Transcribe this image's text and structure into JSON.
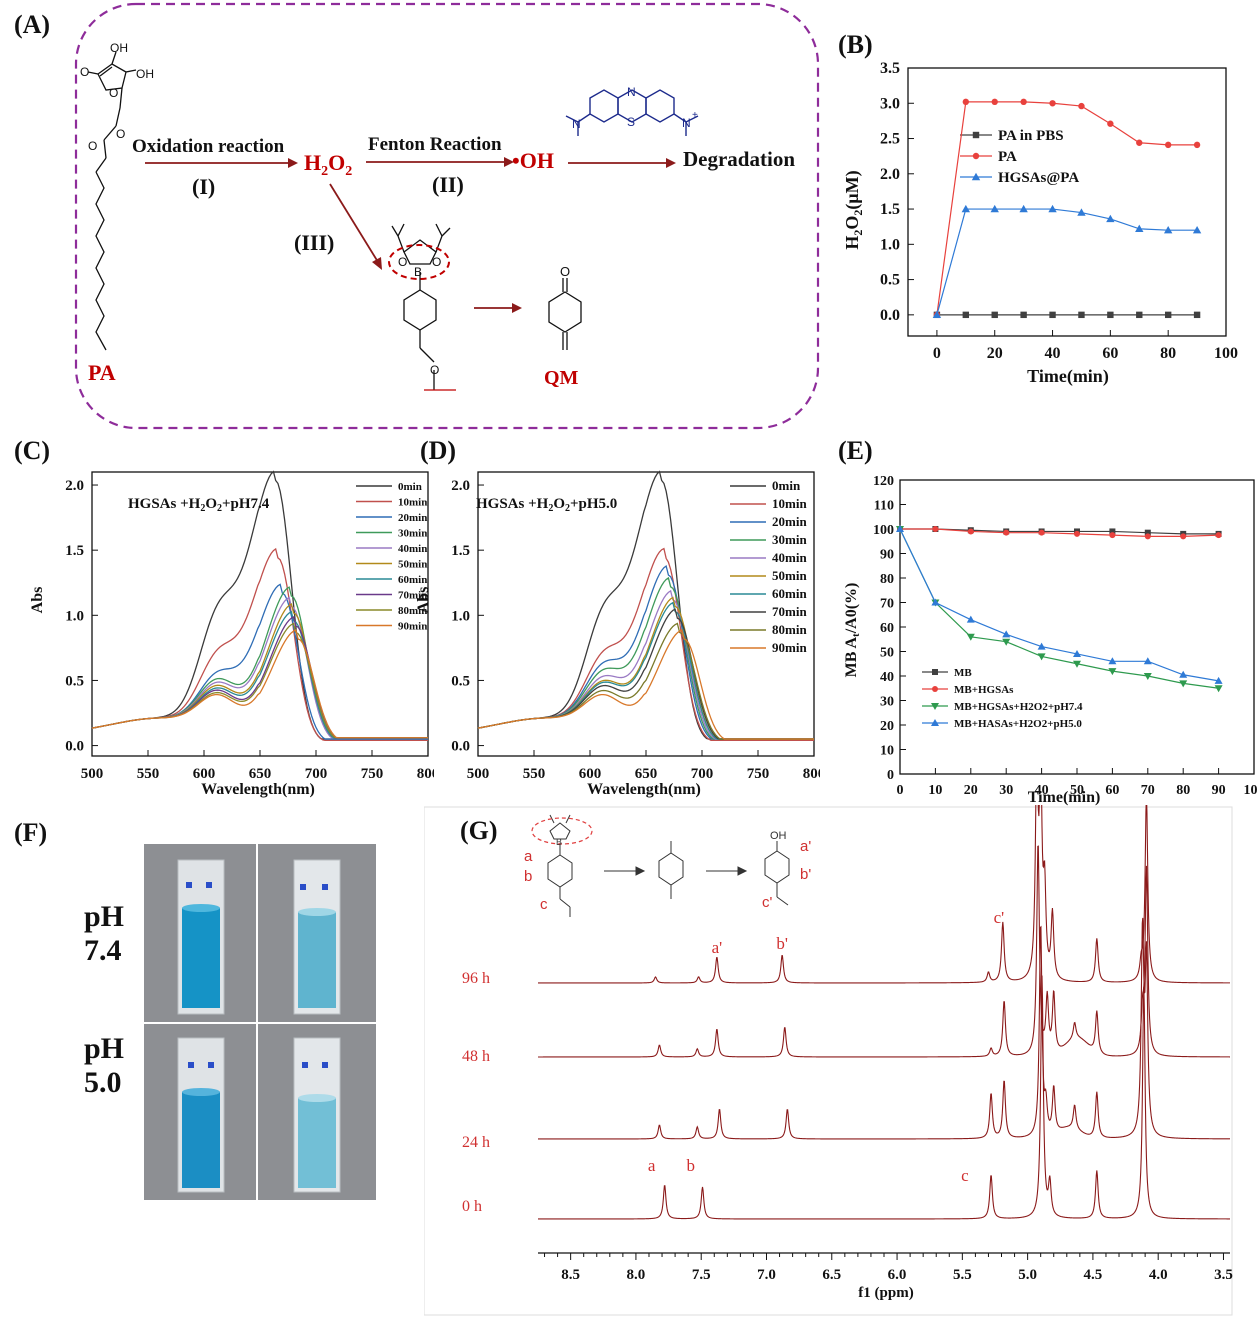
{
  "panels": {
    "A": "(A)",
    "B": "(B)",
    "C": "(C)",
    "D": "(D)",
    "E": "(E)",
    "F": "(F)",
    "G": "(G)"
  },
  "scheme": {
    "pa_label": "PA",
    "oxidation": "Oxidation reaction",
    "step1": "(I)",
    "h2o2": "H",
    "h2o2_sub": "2",
    "h2o2_o": "O",
    "fenton": "Fenton Reaction",
    "step2": "(II)",
    "oh": "•OH",
    "degradation": "Degradation",
    "step3": "(III)",
    "qm_label": "QM",
    "atom_oh": "OH",
    "atom_o": "O",
    "atom_b": "B",
    "atom_n": "N",
    "atom_s": "S",
    "atom_nplus": "N",
    "plus": "+"
  },
  "colors": {
    "red": "#c00000",
    "purple": "#8e2c9a",
    "darkred": "#8b1a1a",
    "navy": "#1c2a8c",
    "nmr": "#8b1a1a"
  },
  "chart_b": {
    "type": "line",
    "xlabel": "Time(min)",
    "ylabel": "H2O2(μM)",
    "xlim": [
      -10,
      100
    ],
    "ylim": [
      -0.3,
      3.5
    ],
    "xticks": [
      0,
      20,
      40,
      60,
      80,
      100
    ],
    "yticks": [
      "0.0",
      "0.5",
      "1.0",
      "1.5",
      "2.0",
      "2.5",
      "3.0",
      "3.5"
    ],
    "series": [
      {
        "name": "PA in PBS",
        "marker": "square",
        "color": "#404040",
        "x": [
          0,
          10,
          20,
          30,
          40,
          50,
          60,
          70,
          80,
          90
        ],
        "y": [
          0,
          0,
          0,
          0,
          0,
          0,
          0,
          0,
          0,
          0
        ]
      },
      {
        "name": "PA",
        "marker": "circle",
        "color": "#e8413d",
        "x": [
          0,
          10,
          20,
          30,
          40,
          50,
          60,
          70,
          80,
          90
        ],
        "y": [
          0,
          3.02,
          3.02,
          3.02,
          3.0,
          2.96,
          2.71,
          2.44,
          2.41,
          2.41
        ]
      },
      {
        "name": "HGSAs@PA",
        "marker": "triangle",
        "color": "#2f7ad6",
        "x": [
          0,
          10,
          20,
          30,
          40,
          50,
          60,
          70,
          80,
          90
        ],
        "y": [
          0,
          1.5,
          1.5,
          1.5,
          1.5,
          1.45,
          1.36,
          1.22,
          1.2,
          1.2
        ]
      }
    ]
  },
  "chart_c": {
    "type": "line",
    "annotation": "HGSAs +H2O2+pH7.4",
    "xlabel": "Wavelength(nm)",
    "ylabel": "Abs",
    "xlim": [
      500,
      800
    ],
    "ylim": [
      -0.08,
      2.1
    ],
    "xticks": [
      500,
      550,
      600,
      650,
      700,
      750,
      800
    ],
    "yticks": [
      "0.0",
      "0.5",
      "1.0",
      "1.5",
      "2.0"
    ],
    "series": [
      {
        "name": "0min",
        "color": "#3a3a3a",
        "peak": 2.01,
        "peak_x": 664,
        "shoulder": 1.2,
        "tail": 0.05
      },
      {
        "name": "10min",
        "color": "#c0504d",
        "peak": 1.42,
        "peak_x": 666,
        "shoulder": 0.77,
        "tail": 0.04
      },
      {
        "name": "20min",
        "color": "#2f6db5",
        "peak": 1.15,
        "peak_x": 670,
        "shoulder": 0.58,
        "tail": 0.05
      },
      {
        "name": "30min",
        "color": "#3f9a5a",
        "peak": 1.13,
        "peak_x": 678,
        "shoulder": 0.55,
        "tail": 0.06
      },
      {
        "name": "40min",
        "color": "#9a7ac4",
        "peak": 1.05,
        "peak_x": 678,
        "shoulder": 0.51,
        "tail": 0.06
      },
      {
        "name": "50min",
        "color": "#b28a1a",
        "peak": 1.0,
        "peak_x": 680,
        "shoulder": 0.48,
        "tail": 0.06
      },
      {
        "name": "60min",
        "color": "#2a8a95",
        "peak": 0.94,
        "peak_x": 680,
        "shoulder": 0.45,
        "tail": 0.06
      },
      {
        "name": "70min",
        "color": "#6a3a8a",
        "peak": 0.9,
        "peak_x": 682,
        "shoulder": 0.43,
        "tail": 0.06
      },
      {
        "name": "80min",
        "color": "#8a8a2a",
        "peak": 0.85,
        "peak_x": 682,
        "shoulder": 0.4,
        "tail": 0.06
      },
      {
        "name": "90min",
        "color": "#d8782a",
        "peak": 0.8,
        "peak_x": 684,
        "shoulder": 0.38,
        "tail": 0.06
      }
    ]
  },
  "chart_d": {
    "type": "line",
    "annotation": "HGSAs +H2O2+pH5.0",
    "xlabel": "Wavelength(nm)",
    "ylabel": "Abs",
    "xlim": [
      500,
      800
    ],
    "ylim": [
      -0.08,
      2.1
    ],
    "xticks": [
      500,
      550,
      600,
      650,
      700,
      750,
      800
    ],
    "yticks": [
      "0.0",
      "0.5",
      "1.0",
      "1.5",
      "2.0"
    ],
    "series": [
      {
        "name": "0min",
        "color": "#3a3a3a",
        "peak": 2.01,
        "peak_x": 664,
        "shoulder": 1.2,
        "tail": 0.05
      },
      {
        "name": "10min",
        "color": "#c0504d",
        "peak": 1.42,
        "peak_x": 667,
        "shoulder": 0.77,
        "tail": 0.04
      },
      {
        "name": "20min",
        "color": "#2f6db5",
        "peak": 1.29,
        "peak_x": 670,
        "shoulder": 0.68,
        "tail": 0.05
      },
      {
        "name": "30min",
        "color": "#3f9a5a",
        "peak": 1.2,
        "peak_x": 672,
        "shoulder": 0.62,
        "tail": 0.05
      },
      {
        "name": "40min",
        "color": "#9a7ac4",
        "peak": 1.1,
        "peak_x": 674,
        "shoulder": 0.56,
        "tail": 0.05
      },
      {
        "name": "50min",
        "color": "#b28a1a",
        "peak": 1.05,
        "peak_x": 676,
        "shoulder": 0.52,
        "tail": 0.05
      },
      {
        "name": "60min",
        "color": "#2a8a95",
        "peak": 1.01,
        "peak_x": 676,
        "shoulder": 0.5,
        "tail": 0.05
      },
      {
        "name": "70min",
        "color": "#404040",
        "peak": 0.96,
        "peak_x": 678,
        "shoulder": 0.47,
        "tail": 0.05
      },
      {
        "name": "80min",
        "color": "#7a7a2a",
        "peak": 0.85,
        "peak_x": 680,
        "shoulder": 0.42,
        "tail": 0.05
      },
      {
        "name": "90min",
        "color": "#d8782a",
        "peak": 0.8,
        "peak_x": 684,
        "shoulder": 0.38,
        "tail": 0.05
      }
    ]
  },
  "chart_e": {
    "type": "line",
    "xlabel": "Time(min)",
    "ylabel": "MB At/A0(%)",
    "xlim": [
      0,
      100
    ],
    "ylim": [
      0,
      120
    ],
    "xticks": [
      0,
      10,
      20,
      30,
      40,
      50,
      60,
      70,
      80,
      90,
      100
    ],
    "yticks": [
      0,
      10,
      20,
      30,
      40,
      50,
      60,
      70,
      80,
      90,
      100,
      110,
      120
    ],
    "series": [
      {
        "name": "MB",
        "marker": "square",
        "color": "#404040",
        "x": [
          0,
          10,
          20,
          30,
          40,
          50,
          60,
          70,
          80,
          90
        ],
        "y": [
          100,
          100,
          99.5,
          99,
          99,
          99,
          99,
          98.5,
          98,
          98
        ]
      },
      {
        "name": "MB+HGSAs",
        "marker": "circle",
        "color": "#e8413d",
        "x": [
          0,
          10,
          20,
          30,
          40,
          50,
          60,
          70,
          80,
          90
        ],
        "y": [
          100,
          100,
          99,
          98.5,
          98.5,
          98,
          97.5,
          97,
          97,
          97.5
        ]
      },
      {
        "name": "MB+HGSAs+H2O2+pH7.4",
        "marker": "tri-down",
        "color": "#2e9a4e",
        "x": [
          0,
          10,
          20,
          30,
          40,
          50,
          60,
          70,
          80,
          90
        ],
        "y": [
          100,
          70,
          56,
          54,
          48,
          45,
          42,
          40,
          37,
          35
        ]
      },
      {
        "name": "MB+HASAs+H2O2+pH5.0",
        "marker": "triangle",
        "color": "#2f7ad6",
        "x": [
          0,
          10,
          20,
          30,
          40,
          50,
          60,
          70,
          80,
          90
        ],
        "y": [
          100,
          70,
          63,
          57,
          52,
          49,
          46,
          46,
          40.5,
          38
        ]
      }
    ]
  },
  "photos": {
    "ph74": [
      "pH",
      "7.4"
    ],
    "ph50": [
      "pH",
      "5.0"
    ]
  },
  "chart_g": {
    "type": "line",
    "xlabel": "f1 (ppm)",
    "xlim": [
      8.75,
      3.45
    ],
    "xticks": [
      "8.5",
      "8.0",
      "7.5",
      "7.0",
      "6.5",
      "6.0",
      "5.5",
      "5.0",
      "4.5",
      "4.0",
      "3.5"
    ],
    "series": [
      {
        "name": "96 h"
      },
      {
        "name": "48 h"
      },
      {
        "name": "24 h"
      },
      {
        "name": "0 h"
      }
    ],
    "peak_labels": {
      "a": "a",
      "b": "b",
      "c": "c",
      "a_p": "a'",
      "b_p": "b'",
      "c_p": "c'"
    },
    "inset_labels": {
      "a": "a",
      "b": "b",
      "c": "c",
      "a_p": "a'",
      "b_p": "b'",
      "c_p": "c'",
      "oh": "OH",
      "b_atom": "B"
    }
  }
}
